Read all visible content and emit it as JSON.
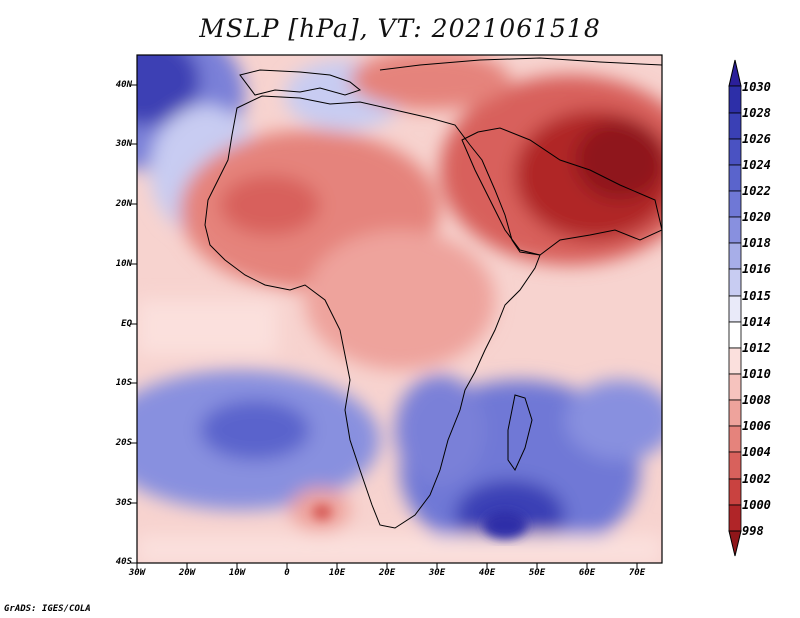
{
  "title": "MSLP [hPa], VT: 2021061518",
  "footer": "GrADS: IGES/COLA",
  "map": {
    "lat_labels": [
      "40N",
      "30N",
      "20N",
      "10N",
      "EQ",
      "10S",
      "20S",
      "30S",
      "40S"
    ],
    "lon_labels": [
      "30W",
      "20W",
      "10W",
      "0",
      "10E",
      "20E",
      "30E",
      "40E",
      "50E",
      "60E",
      "70E"
    ],
    "extent": {
      "lon": [
        -30,
        75
      ],
      "lat": [
        -40,
        45
      ]
    }
  },
  "colorbar": {
    "levels": [
      "1030",
      "1028",
      "1026",
      "1024",
      "1022",
      "1020",
      "1018",
      "1016",
      "1015",
      "1014",
      "1012",
      "1010",
      "1008",
      "1006",
      "1004",
      "1002",
      "1000",
      "998"
    ],
    "colors": [
      "#2b1f9a",
      "#2d2fa8",
      "#3a40b5",
      "#4a52c2",
      "#5a64cc",
      "#6f78d6",
      "#8890df",
      "#a7aee8",
      "#c8ccf2",
      "#e9eaf9",
      "#ffffff",
      "#fbe0dd",
      "#f6c3be",
      "#eea39c",
      "#e5837c",
      "#d8615c",
      "#c94240",
      "#b02528",
      "#8f161a"
    ]
  }
}
